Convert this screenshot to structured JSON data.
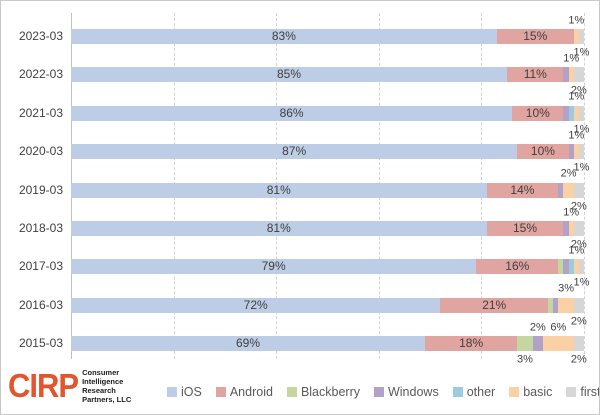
{
  "chart_data": {
    "type": "bar",
    "orientation": "horizontal",
    "stacked": true,
    "xlim": [
      0,
      100
    ],
    "grid": "vertical dashed lines every 20%",
    "legend_position": "bottom",
    "categories": [
      "2023-03",
      "2022-03",
      "2021-03",
      "2020-03",
      "2019-03",
      "2018-03",
      "2017-03",
      "2016-03",
      "2015-03"
    ],
    "series": [
      {
        "name": "ios",
        "label": "iOS",
        "values": [
          83,
          85,
          86,
          87,
          81,
          81,
          79,
          72,
          69
        ]
      },
      {
        "name": "android",
        "label": "Android",
        "values": [
          15,
          11,
          10,
          10,
          14,
          15,
          16,
          21,
          18
        ]
      },
      {
        "name": "blackberry",
        "label": "Blackberry",
        "values": [
          0,
          0,
          0,
          0,
          0,
          0,
          1,
          1,
          3
        ]
      },
      {
        "name": "windows",
        "label": "Windows",
        "values": [
          0,
          1,
          1,
          1,
          1,
          1,
          1,
          1,
          2
        ]
      },
      {
        "name": "other",
        "label": "other",
        "values": [
          0,
          0,
          1,
          0,
          0,
          0,
          1,
          0,
          0
        ]
      },
      {
        "name": "basic",
        "label": "basic",
        "values": [
          1,
          1,
          1,
          1,
          2,
          1,
          1,
          3,
          6
        ]
      },
      {
        "name": "first",
        "label": "first",
        "values": [
          1,
          2,
          1,
          1,
          2,
          2,
          1,
          2,
          2
        ]
      }
    ],
    "inside_labels": [
      {
        "row": 0,
        "ios": "83%",
        "android": "15%"
      },
      {
        "row": 1,
        "ios": "85%",
        "android": "11%"
      },
      {
        "row": 2,
        "ios": "86%",
        "android": "10%"
      },
      {
        "row": 3,
        "ios": "87%",
        "android": "10%"
      },
      {
        "row": 4,
        "ios": "81%",
        "android": "14%"
      },
      {
        "row": 5,
        "ios": "81%",
        "android": "15%"
      },
      {
        "row": 6,
        "ios": "79%",
        "android": "16%"
      },
      {
        "row": 7,
        "ios": "72%",
        "android": "21%"
      },
      {
        "row": 8,
        "ios": "69%",
        "android": "18%"
      }
    ],
    "callouts": [
      [
        {
          "segment": "basic",
          "text": "1%",
          "position": "above"
        },
        {
          "segment": "first",
          "text": "1%",
          "position": "below"
        }
      ],
      [
        {
          "segment": "basic",
          "text": "1%",
          "position": "above"
        },
        {
          "segment": "first",
          "text": "2%",
          "position": "below"
        }
      ],
      [
        {
          "segment": "basic",
          "text": "1%",
          "position": "above"
        },
        {
          "segment": "first",
          "text": "1%",
          "position": "below"
        }
      ],
      [
        {
          "segment": "basic",
          "text": "1%",
          "position": "above"
        },
        {
          "segment": "first",
          "text": "1%",
          "position": "below"
        }
      ],
      [
        {
          "segment": "basic",
          "text": "2%",
          "position": "above"
        },
        {
          "segment": "first",
          "text": "2%",
          "position": "below"
        }
      ],
      [
        {
          "segment": "basic",
          "text": "1%",
          "position": "above"
        },
        {
          "segment": "first",
          "text": "2%",
          "position": "below"
        }
      ],
      [
        {
          "segment": "basic",
          "text": "1%",
          "position": "above"
        },
        {
          "segment": "first",
          "text": "1%",
          "position": "below"
        }
      ],
      [
        {
          "segment": "basic",
          "text": "3%",
          "position": "above"
        },
        {
          "segment": "first",
          "text": "2%",
          "position": "below"
        }
      ],
      [
        {
          "segment": "windows",
          "text": "2%",
          "position": "above"
        },
        {
          "segment": "basic",
          "text": "6%",
          "position": "above"
        },
        {
          "segment": "blackberry",
          "text": "3%",
          "position": "below"
        },
        {
          "segment": "first",
          "text": "2%",
          "position": "below"
        }
      ]
    ]
  },
  "palette": {
    "ios": "#bccde5",
    "android": "#e0a5a0",
    "blackberry": "#c5d7a0",
    "windows": "#b2a2c7",
    "other": "#9bcbdd",
    "basic": "#fad0a5",
    "first": "#d6d6d6",
    "grid": "#d2d2d2",
    "axis_text": "#404040",
    "legend_text": "#595959",
    "logo_orange": "#e2552d"
  },
  "legend": {
    "items": [
      {
        "label": "iOS",
        "color": "#bccde5"
      },
      {
        "label": "Android",
        "color": "#e0a5a0"
      },
      {
        "label": "Blackberry",
        "color": "#c5d7a0"
      },
      {
        "label": "Windows",
        "color": "#b2a2c7"
      },
      {
        "label": "other",
        "color": "#9bcbdd"
      },
      {
        "label": "basic",
        "color": "#fad0a5"
      },
      {
        "label": "first",
        "color": "#d6d6d6"
      }
    ]
  },
  "logo": {
    "brand": "CIRP",
    "lines": [
      "Consumer",
      "Intelligence",
      "Research",
      "Partners, LLC"
    ]
  }
}
